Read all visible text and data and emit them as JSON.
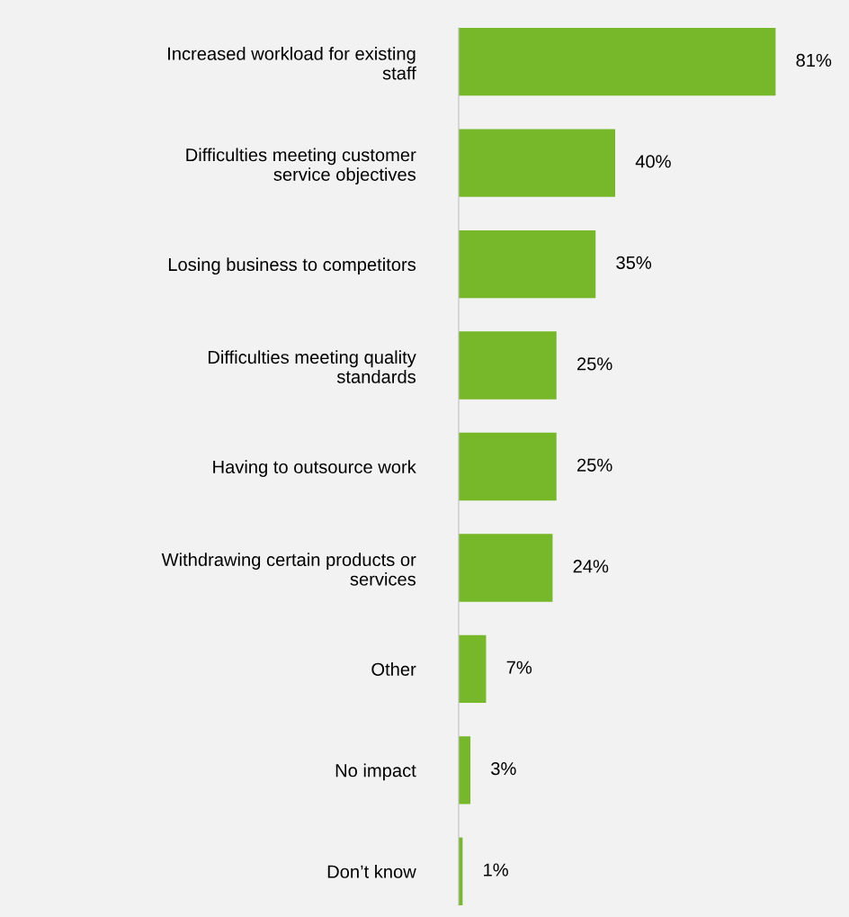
{
  "chart_data": {
    "type": "bar",
    "orientation": "horizontal",
    "tick_labels": "y",
    "grid": false,
    "legend": false,
    "categories": [
      "Increased workload for existing\nstaff",
      "Difficulties meeting customer\nservice objectives",
      "Losing business to competitors",
      "Difficulties meeting quality\nstandards",
      "Having to outsource work",
      "Withdrawing certain products or\nservices",
      "Other",
      "No impact",
      "Don’t know"
    ],
    "values": [
      81,
      40,
      35,
      25,
      25,
      24,
      7,
      3,
      1
    ],
    "value_labels": [
      "81%",
      "40%",
      "35%",
      "25%",
      "25%",
      "24%",
      "7%",
      "3%",
      "1%"
    ],
    "color": "#76b82a"
  }
}
